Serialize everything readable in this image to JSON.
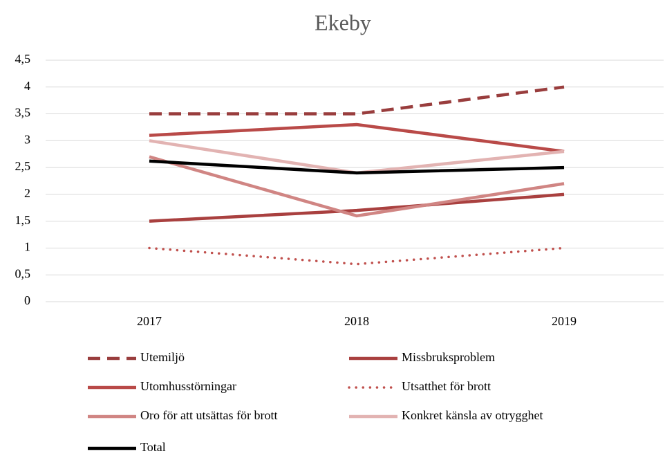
{
  "chart_data": {
    "type": "line",
    "title": "Ekeby",
    "categories": [
      "2017",
      "2018",
      "2019"
    ],
    "ylim": [
      0,
      4.5
    ],
    "yticks": [
      0,
      {
        "value": 0.5,
        "label": "0,5"
      },
      1,
      {
        "value": 1.5,
        "label": "1,5"
      },
      2,
      {
        "value": 2.5,
        "label": "2,5"
      },
      3,
      {
        "value": 3.5,
        "label": "3,5"
      },
      4,
      {
        "value": 4.5,
        "label": "4,5"
      }
    ],
    "grid": true,
    "legend": "bottom",
    "series": [
      {
        "name": "Utemiljö",
        "color": "#993d3d",
        "dash": "dashed",
        "values": [
          3.5,
          3.5,
          4
        ]
      },
      {
        "name": "Missbruksproblem",
        "color": "#a9403f",
        "dash": "solid",
        "values": [
          1.5,
          1.7,
          2
        ]
      },
      {
        "name": "Utomhusstörningar",
        "color": "#b94a48",
        "dash": "solid",
        "values": [
          3.1,
          3.3,
          2.8
        ]
      },
      {
        "name": "Utsatthet för brott",
        "color": "#c0504d",
        "dash": "dotted",
        "values": [
          1,
          0.7,
          1
        ]
      },
      {
        "name": "Oro för att utsättas för brott",
        "color": "#d08583",
        "dash": "solid",
        "values": [
          2.7,
          1.6,
          2.2
        ]
      },
      {
        "name": "Konkret känsla av otrygghet",
        "color": "#e2b3b2",
        "dash": "solid",
        "values": [
          3,
          2.4,
          2.8
        ]
      },
      {
        "name": "Total",
        "color": "#000000",
        "dash": "solid",
        "values": [
          2.62,
          2.4,
          2.5
        ]
      }
    ]
  }
}
